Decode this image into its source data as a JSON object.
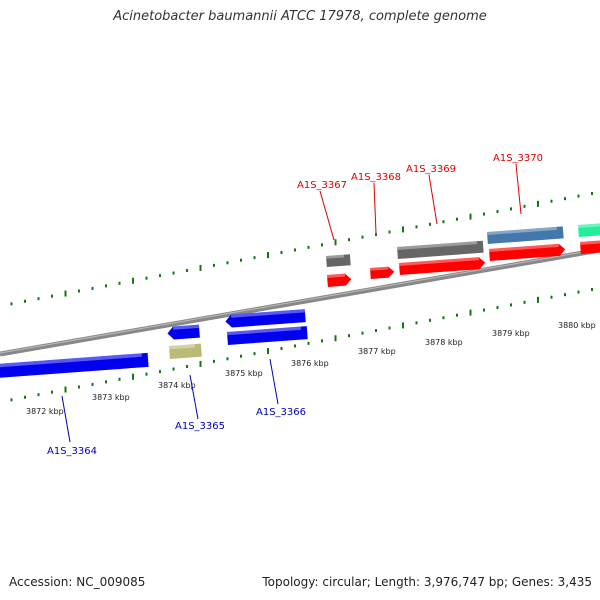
{
  "header": {
    "title": "Acinetobacter baumannii ATCC 17978, complete genome"
  },
  "footer": {
    "accession": "Accession: NC_009085",
    "summary": "Topology: circular; Length: 3,976,747 bp; Genes: 3,435"
  },
  "colors": {
    "forward_label": "#dd0000",
    "reverse_label": "#0000bb",
    "tick": "#117711",
    "backbone": "#888888",
    "cds_red": "#ff0000",
    "cds_blue": "#0000ee",
    "gene_gray": "#666666",
    "gene_steel": "#4477aa",
    "gene_khaki": "#bbbb77",
    "gene_teal": "#22ee99"
  },
  "scale": {
    "ticks_kbp": [
      "3872 kbp",
      "3873 kbp",
      "3874 kbp",
      "3875 kbp",
      "3876 kbp",
      "3877 kbp",
      "3878 kbp",
      "3879 kbp",
      "3880 kbp"
    ]
  },
  "genes": {
    "forward": [
      "A1S_3367",
      "A1S_3368",
      "A1S_3369",
      "A1S_3370"
    ],
    "reverse": [
      "A1S_3364",
      "A1S_3365",
      "A1S_3366"
    ]
  }
}
